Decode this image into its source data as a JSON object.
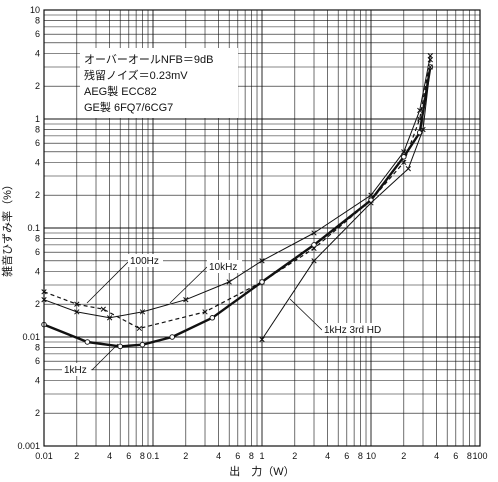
{
  "chart_data": {
    "type": "line",
    "title": "",
    "xlabel": "出　力（W）",
    "ylabel": "雑音ひずみ率（%）",
    "xscale": "log",
    "yscale": "log",
    "xlim": [
      0.01,
      100
    ],
    "ylim": [
      0.001,
      10
    ],
    "grid": true,
    "x_tick_labels": [
      {
        "v": 0.01,
        "t": "0.01"
      },
      {
        "v": 0.02,
        "t": "2"
      },
      {
        "v": 0.04,
        "t": "4"
      },
      {
        "v": 0.06,
        "t": "6"
      },
      {
        "v": 0.08,
        "t": "8"
      },
      {
        "v": 0.1,
        "t": "0.1"
      },
      {
        "v": 0.2,
        "t": "2"
      },
      {
        "v": 0.4,
        "t": "4"
      },
      {
        "v": 0.6,
        "t": "6"
      },
      {
        "v": 0.8,
        "t": "8"
      },
      {
        "v": 1,
        "t": "1"
      },
      {
        "v": 2,
        "t": "2"
      },
      {
        "v": 4,
        "t": "4"
      },
      {
        "v": 6,
        "t": "6"
      },
      {
        "v": 8,
        "t": "8"
      },
      {
        "v": 10,
        "t": "10"
      },
      {
        "v": 20,
        "t": "2"
      },
      {
        "v": 40,
        "t": "4"
      },
      {
        "v": 60,
        "t": "6"
      },
      {
        "v": 80,
        "t": "8"
      },
      {
        "v": 100,
        "t": "100"
      }
    ],
    "y_tick_labels": [
      {
        "v": 10,
        "t": "10"
      },
      {
        "v": 8,
        "t": "8"
      },
      {
        "v": 6,
        "t": "6"
      },
      {
        "v": 4,
        "t": "4"
      },
      {
        "v": 2,
        "t": "2"
      },
      {
        "v": 1,
        "t": "1"
      },
      {
        "v": 0.8,
        "t": "8"
      },
      {
        "v": 0.6,
        "t": "6"
      },
      {
        "v": 0.4,
        "t": "4"
      },
      {
        "v": 0.2,
        "t": "2"
      },
      {
        "v": 0.1,
        "t": "0.1"
      },
      {
        "v": 0.08,
        "t": "8"
      },
      {
        "v": 0.06,
        "t": "6"
      },
      {
        "v": 0.04,
        "t": "4"
      },
      {
        "v": 0.02,
        "t": "2"
      },
      {
        "v": 0.01,
        "t": "0.01"
      },
      {
        "v": 0.008,
        "t": "8"
      },
      {
        "v": 0.006,
        "t": "6"
      },
      {
        "v": 0.004,
        "t": "4"
      },
      {
        "v": 0.002,
        "t": "2"
      },
      {
        "v": 0.001,
        "t": "0.001"
      }
    ],
    "info_lines": [
      "オーバーオールNFB＝9dB",
      "残留ノイズ＝0.23mV",
      "AEG製 ECC82",
      "GE製 6FQ7/6CG7"
    ],
    "series": [
      {
        "name": "100Hz",
        "style": "dashed",
        "marker": "cross",
        "x": [
          0.01,
          0.02,
          0.035,
          0.075,
          0.3,
          1.0,
          3.0,
          10,
          20,
          28,
          35
        ],
        "y": [
          0.026,
          0.02,
          0.018,
          0.012,
          0.017,
          0.032,
          0.065,
          0.18,
          0.4,
          1.0,
          3.5
        ]
      },
      {
        "name": "10kHz",
        "style": "solid-thin",
        "marker": "cross",
        "x": [
          0.01,
          0.02,
          0.04,
          0.08,
          0.2,
          0.5,
          1.0,
          3.0,
          10,
          20,
          28,
          35
        ],
        "y": [
          0.022,
          0.017,
          0.015,
          0.017,
          0.022,
          0.032,
          0.05,
          0.09,
          0.2,
          0.5,
          1.2,
          3.8
        ]
      },
      {
        "name": "1kHz",
        "style": "solid-bold",
        "marker": "circle",
        "x": [
          0.01,
          0.025,
          0.05,
          0.08,
          0.15,
          0.35,
          1.0,
          3.0,
          10,
          20,
          28,
          35
        ],
        "y": [
          0.013,
          0.009,
          0.0082,
          0.0085,
          0.01,
          0.015,
          0.032,
          0.07,
          0.18,
          0.45,
          0.75,
          3.0
        ]
      },
      {
        "name": "1kHz 3rd HD",
        "style": "solid-thin",
        "marker": "cross",
        "x": [
          1.0,
          3.0,
          10,
          22,
          30,
          35
        ],
        "y": [
          0.0095,
          0.05,
          0.17,
          0.35,
          0.8,
          3.0
        ]
      }
    ]
  }
}
